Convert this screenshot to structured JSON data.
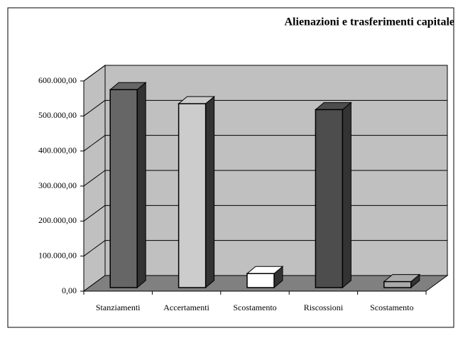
{
  "chart_data": {
    "type": "bar3d",
    "title": "Alienazioni e trasferimenti capitale",
    "categories": [
      "Stanziamenti",
      "Accertamenti",
      "Scostamento",
      "Riscossioni",
      "Scostamento"
    ],
    "values": [
      565000,
      525000,
      40000,
      508000,
      17000
    ],
    "colors": [
      "#666666",
      "#cccccc",
      "#ffffff",
      "#4d4d4d",
      "#aaaaaa"
    ],
    "ylim": [
      0,
      600000
    ],
    "yticks": [
      {
        "value": 0,
        "label": "0,00"
      },
      {
        "value": 100000,
        "label": "100.000,00"
      },
      {
        "value": 200000,
        "label": "200.000,00"
      },
      {
        "value": 300000,
        "label": "300.000,00"
      },
      {
        "value": 400000,
        "label": "400.000,00"
      },
      {
        "value": 500000,
        "label": "500.000,00"
      },
      {
        "value": 600000,
        "label": "600.000,00"
      }
    ],
    "grid": true
  }
}
